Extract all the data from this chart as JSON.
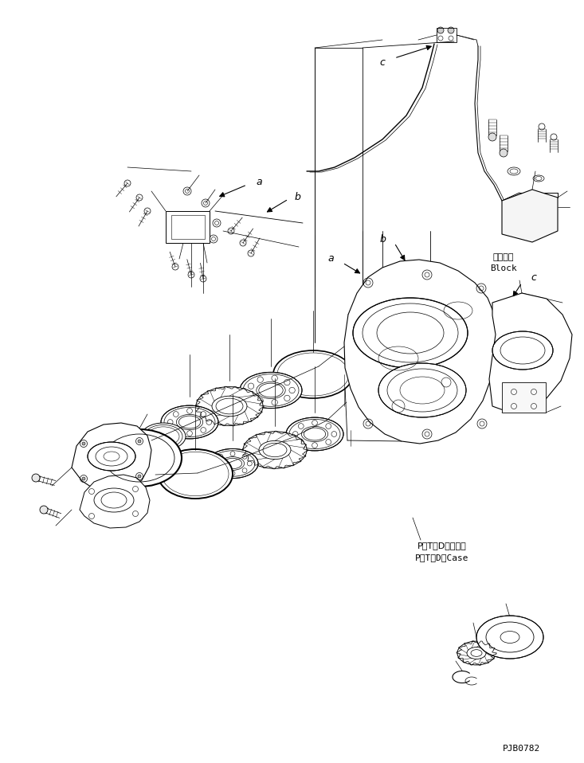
{
  "background_color": "#ffffff",
  "line_color": "#000000",
  "figure_width": 7.33,
  "figure_height": 9.58,
  "dpi": 100,
  "labels": {
    "ptd_case_ja": "P．T．D．ケース",
    "ptd_case_en": "P．T．D．Case",
    "block_ja": "ブロック",
    "block_en": "Block",
    "part_id": "PJB0782"
  }
}
